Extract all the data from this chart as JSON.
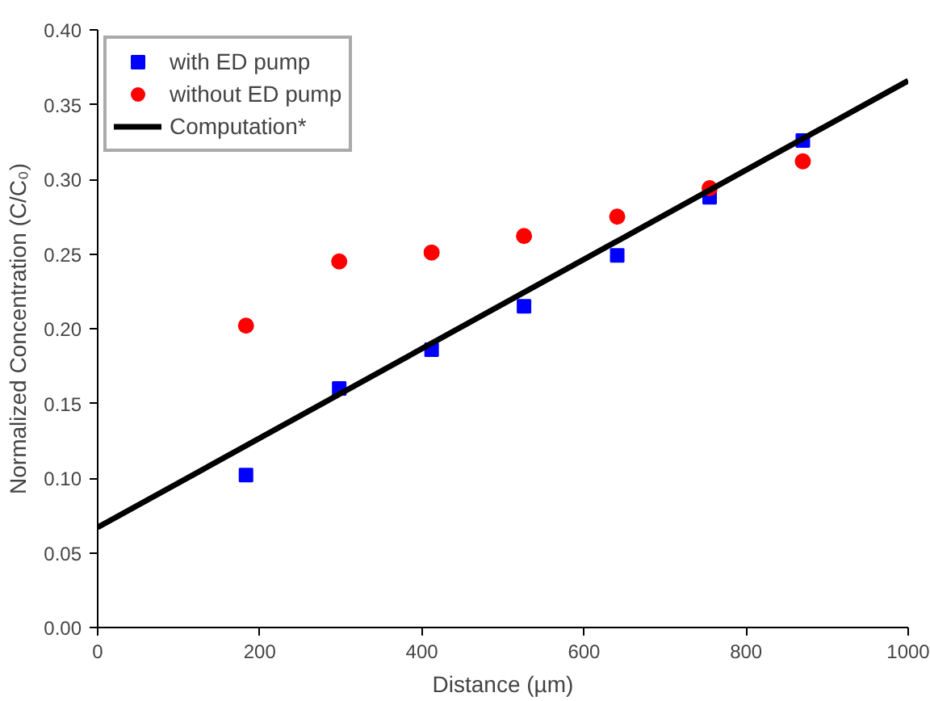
{
  "chart_data": {
    "type": "scatter",
    "xlabel": "Distance (µm)",
    "ylabel": "Normalized Concentration (C/C₀)",
    "xlim": [
      0,
      1000
    ],
    "ylim": [
      0,
      0.4
    ],
    "xticks": [
      0,
      200,
      400,
      600,
      800,
      1000
    ],
    "yticks": [
      {
        "value": 0,
        "label": "0.00"
      },
      {
        "value": 0.05,
        "label": "0.05"
      },
      {
        "value": 0.1,
        "label": "0.10"
      },
      {
        "value": 0.15,
        "label": "0.15"
      },
      {
        "value": 0.2,
        "label": "0.20"
      },
      {
        "value": 0.25,
        "label": "0.25"
      },
      {
        "value": 0.3,
        "label": "0.30"
      },
      {
        "value": 0.35,
        "label": "0.35"
      },
      {
        "value": 0.4,
        "label": "0.40"
      }
    ],
    "x": [
      183,
      298,
      412,
      526,
      641,
      755,
      870
    ],
    "series": [
      {
        "name": "with ED pump",
        "color": "#0000ff",
        "marker": "square",
        "values": [
          0.102,
          0.16,
          0.186,
          0.215,
          0.249,
          0.288,
          0.326
        ]
      },
      {
        "name": "without ED pump",
        "color": "#ff0000",
        "marker": "circle",
        "values": [
          0.202,
          0.245,
          0.251,
          0.262,
          0.275,
          0.294,
          0.312
        ]
      },
      {
        "name": "Computation*",
        "type": "line",
        "color": "#000000",
        "line_style": "solid",
        "x": [
          0,
          1000
        ],
        "values": [
          0.067,
          0.366
        ]
      }
    ],
    "grid": false,
    "legend": "top left"
  }
}
